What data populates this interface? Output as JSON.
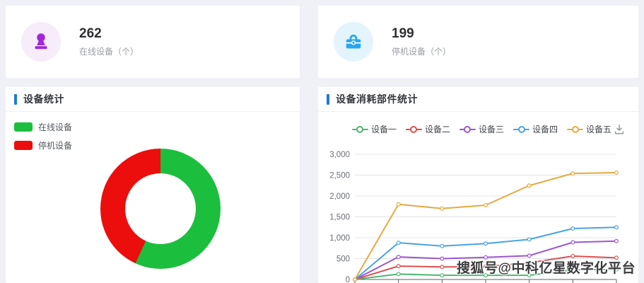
{
  "accent_color": "#1f7ad8",
  "stat_cards": [
    {
      "value": "262",
      "label": "在线设备（个）",
      "icon": "stamp-icon",
      "icon_color": "#a128d8",
      "icon_bg": "#f7ecfa"
    },
    {
      "value": "199",
      "label": "停机设备（个）",
      "icon": "toolbox-icon",
      "icon_color": "#28a7f0",
      "icon_bg": "#e4f4fd"
    }
  ],
  "panels": {
    "donut": {
      "title": "设备统计"
    },
    "line": {
      "title": "设备消耗部件统计",
      "toolbox_icon": "save-as-image"
    }
  },
  "watermark": "搜狐号@中科亿星数字化平台",
  "chart_data": [
    {
      "type": "pie",
      "title": "设备统计",
      "donut": true,
      "start_angle_deg_from_top": 0,
      "direction": "clockwise",
      "legend_position": "top-left",
      "slices": [
        {
          "label": "在线设备",
          "value": 262,
          "color": "#1cbe3e"
        },
        {
          "label": "停机设备",
          "value": 199,
          "color": "#ec0d0d"
        }
      ]
    },
    {
      "type": "line",
      "title": "设备消耗部件统计",
      "legend_position": "top-center",
      "grid": true,
      "ylim": [
        0,
        3000
      ],
      "y_ticks": [
        "0",
        "500",
        "1,000",
        "1,500",
        "2,000",
        "2,500",
        "3,000"
      ],
      "x_point_count": 7,
      "x_tick_labels_visible": false,
      "series": [
        {
          "name": "设备一",
          "color": "#4eb571",
          "values": [
            0,
            130,
            100,
            100,
            100,
            230,
            240
          ]
        },
        {
          "name": "设备二",
          "color": "#dd5050",
          "values": [
            0,
            320,
            300,
            310,
            400,
            560,
            520
          ]
        },
        {
          "name": "设备三",
          "color": "#9d56d2",
          "values": [
            0,
            540,
            500,
            530,
            570,
            890,
            920
          ]
        },
        {
          "name": "设备四",
          "color": "#4aa3e2",
          "values": [
            0,
            880,
            800,
            860,
            960,
            1220,
            1250
          ]
        },
        {
          "name": "设备五",
          "color": "#e5aa3e",
          "values": [
            0,
            1800,
            1700,
            1780,
            2250,
            2540,
            2560
          ]
        }
      ]
    }
  ]
}
